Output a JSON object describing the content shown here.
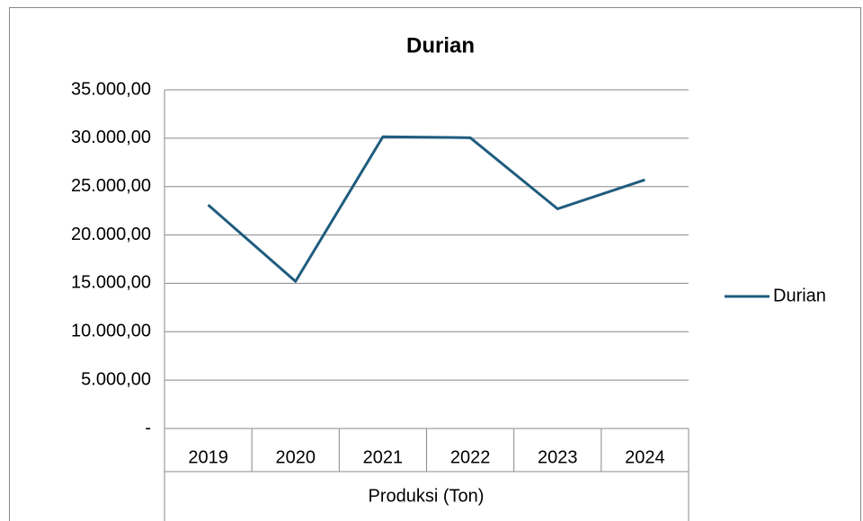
{
  "chart_data": {
    "type": "line",
    "title": "Durian",
    "x_axis_label": "Produksi (Ton)",
    "categories": [
      "2019",
      "2020",
      "2021",
      "2022",
      "2023",
      "2024"
    ],
    "series": [
      {
        "name": "Durian",
        "color": "#1f5c7e",
        "values": [
          23100,
          15200,
          30150,
          30050,
          22700,
          25700
        ]
      }
    ],
    "ylim": [
      0,
      35000
    ],
    "yticks": [
      {
        "value": 0,
        "label": "-"
      },
      {
        "value": 5000,
        "label": "5.000,00"
      },
      {
        "value": 10000,
        "label": "10.000,00"
      },
      {
        "value": 15000,
        "label": "15.000,00"
      },
      {
        "value": 20000,
        "label": "20.000,00"
      },
      {
        "value": 25000,
        "label": "25.000,00"
      },
      {
        "value": 30000,
        "label": "30.000,00"
      },
      {
        "value": 35000,
        "label": "35.000,00"
      }
    ],
    "grid": true,
    "legend": "right"
  }
}
